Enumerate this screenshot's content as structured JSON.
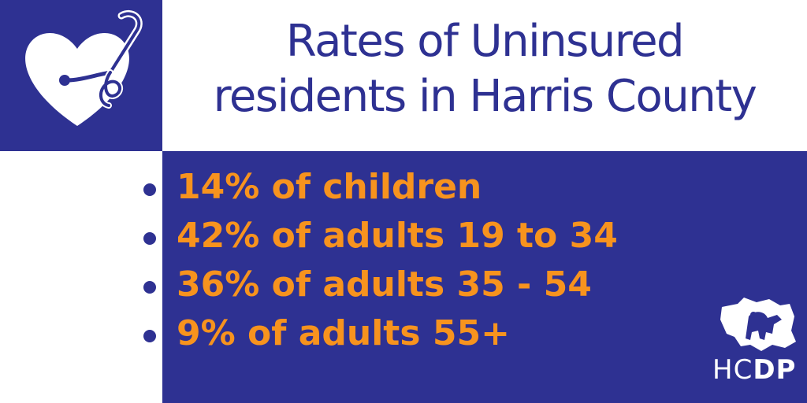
{
  "header": {
    "title_line1": "Rates of Uninsured",
    "title_line2": "residents in Harris County",
    "icon": "heart-stethoscope-icon"
  },
  "stats": [
    {
      "text": "14% of children",
      "percent": 14
    },
    {
      "text": "42% of adults 19 to 34",
      "percent": 42
    },
    {
      "text": "36% of adults 35 - 54",
      "percent": 36
    },
    {
      "text": "9% of adults 55+",
      "percent": 9
    }
  ],
  "brand": {
    "prefix": "HC",
    "suffix": "DP",
    "icon": "harris-county-map-icon"
  },
  "colors": {
    "navy": "#2e3192",
    "orange": "#f7931e",
    "white": "#ffffff"
  }
}
